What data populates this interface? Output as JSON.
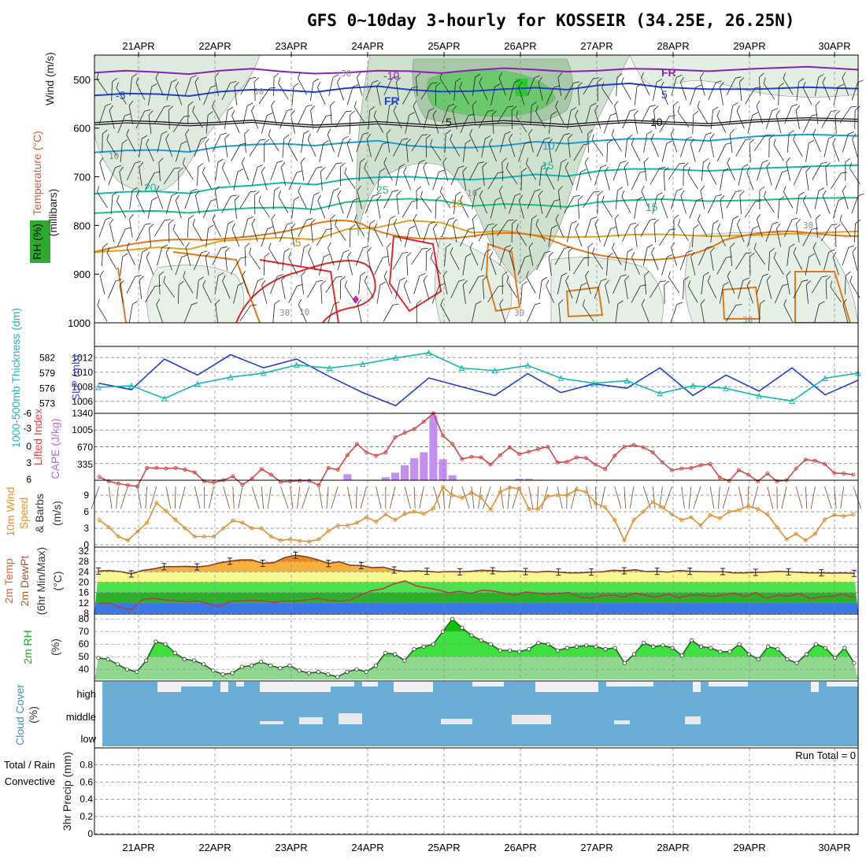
{
  "title": "GFS 0~10day 3-hourly for KOSSEIR (34.25E, 26.25N)",
  "dates": [
    "21APR",
    "22APR",
    "23APR",
    "24APR",
    "25APR",
    "26APR",
    "27APR",
    "28APR",
    "29APR",
    "30APR"
  ],
  "colors": {
    "purple": "#8b1fb3",
    "blue": "#1f3fd1",
    "sky": "#1f9bd6",
    "teal": "#12b8b0",
    "green": "#19c27a",
    "gold": "#e0a020",
    "orange": "#e07818",
    "red": "#e02828",
    "cape": "#c48ff2",
    "cloud": "#6aaed6",
    "rhgreen": "#3ee03e",
    "rhlight": "#90d890"
  },
  "chart_data": [
    {
      "type": "line",
      "panel": "upper-air",
      "labels": {
        "rh": "RH (%)",
        "temp": "Temperature (°C)",
        "wind": "Wind (m/s)",
        "axis": "(millibars)"
      },
      "yticks": [
        500,
        600,
        700,
        800,
        900,
        1000
      ],
      "ylim": [
        450,
        1000
      ],
      "contour_labels": [
        "-10",
        "-5",
        "FR",
        "5",
        "10",
        "15",
        "20",
        "25",
        "-10",
        "-5",
        "FR",
        "5",
        "10",
        "15"
      ],
      "rh_labels": [
        "30",
        "30",
        "10",
        "10",
        "30",
        "30",
        "30",
        "10",
        "30"
      ],
      "isotherms": [
        {
          "name": "-10",
          "color": "purple",
          "values": [
            486,
            485,
            482,
            484,
            486,
            483,
            481,
            480,
            482,
            479,
            478,
            480
          ]
        },
        {
          "name": "-5",
          "color": "blue",
          "values": [
            533,
            530,
            525,
            522,
            518,
            521,
            524,
            517,
            512,
            516,
            520,
            519
          ]
        },
        {
          "name": "FR",
          "color": "black",
          "values": [
            591,
            589,
            590,
            592,
            593,
            593,
            591,
            591,
            590,
            589,
            585,
            584
          ]
        },
        {
          "name": "5",
          "color": "sky",
          "values": [
            650,
            645,
            638,
            632,
            630,
            636,
            640,
            628,
            626,
            622,
            617,
            616
          ]
        },
        {
          "name": "10",
          "color": "teal",
          "values": [
            735,
            730,
            722,
            712,
            705,
            700,
            706,
            695,
            688,
            684,
            683,
            676
          ]
        },
        {
          "name": "15",
          "color": "green",
          "values": [
            775,
            770,
            768,
            763,
            752,
            745,
            760,
            758,
            752,
            746,
            748,
            743
          ]
        },
        {
          "name": "20",
          "color": "gold",
          "values": [
            855,
            845,
            832,
            825,
            808,
            790,
            815,
            820,
            823,
            818,
            820,
            812
          ]
        }
      ]
    },
    {
      "type": "line",
      "panel": "slp-thickness",
      "labels": {
        "slp": "SLP (mb)",
        "thk": "1000-500mb Thickness (dm)"
      },
      "slp_ticks": [
        1006,
        1008,
        1010,
        1012
      ],
      "thk_ticks": [
        573,
        576,
        579,
        582
      ],
      "slp": [
        1008.5,
        1007.6,
        1011.8,
        1009.6,
        1012.4,
        1010.6,
        1011.8,
        1009.4,
        1007.2,
        1005.4,
        1009.2,
        1008.0,
        1006.8,
        1009.8,
        1007.2,
        1008.4,
        1007.8,
        1010.6,
        1006.8,
        1009.6,
        1007.4,
        1010.6,
        1006.9,
        1008.9
      ],
      "thickness": [
        576.2,
        576.5,
        574.0,
        576.9,
        578.2,
        579.0,
        580.6,
        580.0,
        580.8,
        582.0,
        583.0,
        580.0,
        579.5,
        580.5,
        578.0,
        577.0,
        577.5,
        575.0,
        576.5,
        576.0,
        574.5,
        573.5,
        578.0,
        579.0
      ]
    },
    {
      "type": "bar",
      "panel": "cape-lifted-index",
      "labels": {
        "li": "Lifted Index",
        "cape": "CAPE (J/kg)"
      },
      "li_ticks": [
        "-6",
        "-3",
        "0",
        "3",
        "6"
      ],
      "cape_ticks": [
        "335",
        "670",
        "1005",
        "1340"
      ],
      "cape": [
        0,
        0,
        0,
        0,
        0,
        0,
        0,
        0,
        0,
        0,
        0,
        0,
        0,
        0,
        0,
        0,
        0,
        0,
        0,
        0,
        0,
        0,
        0,
        0,
        0,
        0,
        120,
        0,
        0,
        10,
        60,
        150,
        300,
        440,
        560,
        1300,
        420,
        100,
        0,
        0,
        0,
        0,
        0,
        0,
        30,
        30,
        10,
        0,
        0,
        0,
        0,
        0,
        0,
        0,
        0,
        0,
        0,
        0,
        0,
        0,
        0,
        0,
        0,
        0,
        0,
        0,
        0,
        0,
        0,
        0,
        0,
        0,
        0,
        0,
        0,
        0,
        0,
        0,
        0,
        0
      ],
      "lifted_index": [
        5.4,
        6.2,
        6.6,
        6.9,
        7.1,
        3.8,
        3.8,
        3.9,
        3.8,
        4.1,
        4.6,
        6.2,
        6.4,
        6.0,
        5.3,
        6.8,
        5.7,
        4.0,
        5.0,
        6.3,
        6.2,
        6.1,
        6.1,
        6.9,
        3.8,
        4.1,
        1.5,
        -0.5,
        1.0,
        1.6,
        1.0,
        -1.7,
        -2.5,
        -3.2,
        -4.5,
        -6.0,
        -2.0,
        -0.5,
        2.2,
        1.8,
        1.9,
        3.2,
        1.5,
        0.1,
        1.3,
        0.9,
        0.4,
        0.0,
        2.8,
        2.7,
        1.9,
        2.0,
        3.2,
        4.0,
        1.6,
        0.0,
        -0.3,
        0.1,
        1.0,
        2.8,
        4.2,
        3.9,
        3.8,
        3.3,
        3.1,
        5.5,
        6.1,
        4.2,
        5.0,
        6.2,
        4.8,
        6.2,
        6.0,
        3.9,
        2.3,
        2.5,
        3.1,
        4.7,
        4.8,
        5.0
      ]
    },
    {
      "type": "line",
      "panel": "10m-wind",
      "labels": {
        "a": "10m Wind",
        "b": "Speed",
        "c": "& Barbs",
        "d": "(m/s)"
      },
      "yticks": [
        "0",
        "3",
        "6",
        "9"
      ],
      "ylim": [
        0,
        11
      ],
      "speed": [
        4.5,
        3.2,
        1.5,
        0.8,
        2.4,
        4.0,
        7.6,
        6.1,
        4.5,
        3.0,
        1.5,
        1.5,
        1.5,
        3.0,
        4.4,
        4.0,
        3.0,
        3.0,
        1.5,
        0.8,
        1.0,
        0.7,
        0.6,
        1.0,
        2.5,
        3.5,
        3.5,
        4.0,
        5.0,
        4.2,
        5.5,
        4.5,
        5.6,
        6.0,
        5.6,
        6.6,
        10.5,
        9.0,
        8.5,
        9.5,
        8.6,
        6.4,
        9.6,
        10.4,
        10.2,
        6.5,
        6.5,
        8.8,
        9.0,
        9.0,
        10.0,
        9.6,
        7.5,
        6.8,
        4.5,
        0.8,
        4.5,
        6.0,
        7.8,
        6.8,
        5.5,
        4.5,
        5.0,
        3.5,
        5.4,
        4.8,
        6.0,
        6.3,
        7.0,
        6.5,
        5.5,
        3.2,
        1.0,
        2.0,
        0.8,
        2.0,
        4.6,
        5.4,
        5.2,
        5.5
      ]
    },
    {
      "type": "area",
      "panel": "2m-temp",
      "labels": {
        "a": "2m Temp",
        "b": "2m DewPt",
        "c": "(6hr Min/Max)",
        "d": "(°C)"
      },
      "yticks": [
        "8",
        "12",
        "16",
        "20",
        "24",
        "28",
        "32"
      ],
      "ylim": [
        8,
        32
      ],
      "temp": [
        24.3,
        24.5,
        24.1,
        23.2,
        24.5,
        25.1,
        26.0,
        26.0,
        26.1,
        25.9,
        26.3,
        27.4,
        28.1,
        28.6,
        28.6,
        27.3,
        27.5,
        29.5,
        30.4,
        29.8,
        28.7,
        27.2,
        27.9,
        26.5,
        26.4,
        25.6,
        25.8,
        24.7,
        24.2,
        24.4,
        24.2,
        23.9,
        24.1,
        24.0,
        24.2,
        24.6,
        24.4,
        24.1,
        24.3,
        24.1,
        23.9,
        24.2,
        23.9,
        23.6,
        23.6,
        23.9,
        24.0,
        24.6,
        24.4,
        24.8,
        24.1,
        24.2,
        23.9,
        24.5,
        24.2,
        24.1,
        24.0,
        24.1,
        23.6,
        23.6,
        23.8,
        23.9,
        24.2,
        24.0,
        23.8,
        23.6,
        23.6,
        23.5,
        23.6,
        23.4
      ],
      "dewpoint": [
        11.8,
        12.0,
        10.2,
        9.4,
        13.2,
        13.8,
        13.2,
        12.8,
        12.5,
        12.8,
        11.8,
        10.5,
        12.6,
        12.8,
        13.0,
        12.8,
        12.2,
        12.8,
        12.6,
        13.2,
        13.8,
        13.0,
        12.6,
        13.2,
        15.2,
        16.8,
        17.5,
        19.4,
        20.5,
        18.6,
        17.8,
        17.0,
        15.9,
        16.5,
        15.6,
        16.9,
        16.6,
        15.8,
        15.0,
        16.2,
        15.8,
        15.4,
        15.6,
        16.0,
        14.2,
        13.8,
        14.8,
        15.0,
        14.3,
        15.8,
        14.9,
        14.3,
        15.4,
        14.0,
        15.0,
        15.1,
        14.4,
        15.0,
        15.8,
        14.4,
        16.0,
        13.8,
        15.0,
        14.6,
        15.6,
        13.6,
        14.4,
        14.5,
        15.4,
        14.0
      ]
    },
    {
      "type": "area",
      "panel": "2m-rh",
      "labels": {
        "a": "2m RH",
        "b": "(%)"
      },
      "yticks": [
        "40",
        "50",
        "60",
        "70",
        "80"
      ],
      "ylim": [
        32,
        82
      ],
      "rh": [
        49,
        48,
        44,
        40,
        38,
        47,
        62,
        60,
        53,
        48,
        47,
        44,
        39,
        36,
        37,
        42,
        43,
        46,
        43,
        41,
        43,
        39,
        37,
        38,
        36,
        34,
        38,
        40,
        38,
        43,
        53,
        52,
        47,
        56,
        58,
        60,
        70,
        80,
        73,
        67,
        63,
        60,
        55,
        55,
        54,
        56,
        61,
        60,
        55,
        57,
        58,
        59,
        58,
        56,
        57,
        45,
        52,
        61,
        58,
        59,
        57,
        51,
        63,
        58,
        57,
        54,
        54,
        60,
        52,
        48,
        58,
        56,
        48,
        45,
        52,
        60,
        57,
        49,
        57,
        45
      ]
    },
    {
      "type": "heatmap",
      "panel": "cloud-cover",
      "labels": {
        "a": "Cloud Cover",
        "b": "(%)"
      },
      "rows": [
        "high",
        "middle",
        "low"
      ]
    },
    {
      "type": "bar",
      "panel": "3hr-precip",
      "labels": {
        "a": "Total / Rain",
        "b": "Convective",
        "c": "3hr Precip (mm)"
      },
      "yticks": [
        "0",
        "0.2",
        "0.4",
        "0.6",
        "0.8"
      ],
      "ylim": [
        0,
        0.95
      ],
      "run_total": "Run Total = 0",
      "values": []
    }
  ]
}
